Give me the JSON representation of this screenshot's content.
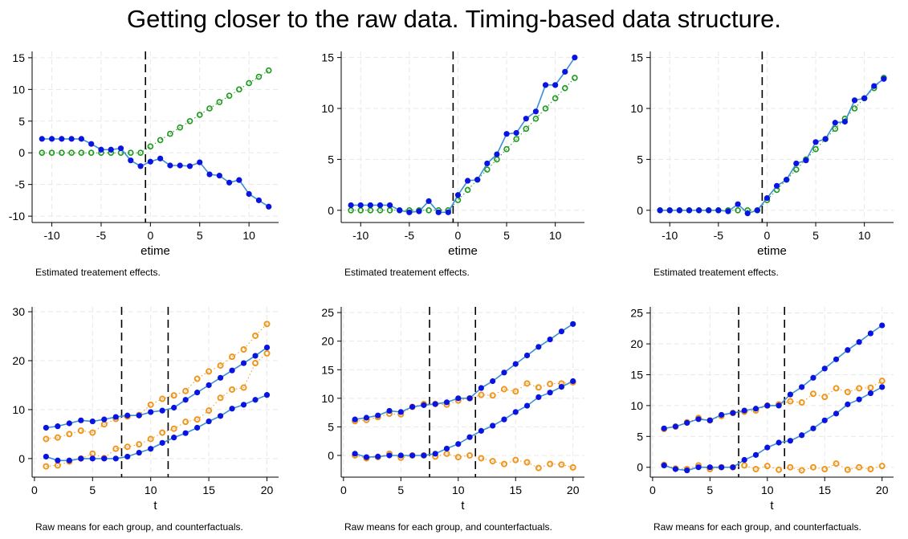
{
  "page": {
    "title": "Getting closer to the raw data.  Timing-based data structure."
  },
  "colors": {
    "estimate": "#0a14e0",
    "estimate_line": "#3a8fd8",
    "truth": "#1c9a1c",
    "counterfactual": "#f0961e",
    "counterfactual_line": "#f0961e",
    "raw_line": "#3a8fd8",
    "vline": "#000000",
    "grid": "#e8e8e8"
  },
  "chart_data": [
    {
      "type": "scatter",
      "row": 0,
      "col": 0,
      "xlabel": "etime",
      "caption": "Estimated treatement effects.",
      "xlim": [
        -12,
        13
      ],
      "ylim": [
        -11,
        16
      ],
      "xticks": [
        -10,
        -5,
        0,
        5,
        10
      ],
      "yticks": [
        -10,
        -5,
        0,
        5,
        10,
        15
      ],
      "vlines": [
        -0.5
      ],
      "series": [
        {
          "role": "estimate",
          "x": [
            -11,
            -10,
            -9,
            -8,
            -7,
            -6,
            -5,
            -4,
            -3,
            -2,
            -1,
            0,
            1,
            2,
            3,
            4,
            5,
            6,
            7,
            8,
            9,
            10,
            11,
            12
          ],
          "y": [
            2.2,
            2.2,
            2.2,
            2.2,
            2.2,
            1.4,
            0.5,
            0.5,
            0.7,
            -1.2,
            -2.1,
            -1.4,
            -0.9,
            -2.0,
            -2.0,
            -2.1,
            -1.5,
            -3.4,
            -3.6,
            -4.7,
            -4.3,
            -6.5,
            -7.5,
            -8.5
          ]
        },
        {
          "role": "truth",
          "x": [
            -11,
            -10,
            -9,
            -8,
            -7,
            -6,
            -5,
            -4,
            -3,
            -2,
            -1,
            0,
            1,
            2,
            3,
            4,
            5,
            6,
            7,
            8,
            9,
            10,
            11,
            12
          ],
          "y": [
            0,
            0,
            0,
            0,
            0,
            0,
            0,
            0,
            0,
            0,
            0,
            1,
            2,
            3,
            4,
            5,
            6,
            7,
            8,
            9,
            10,
            11,
            12,
            13
          ]
        }
      ]
    },
    {
      "type": "scatter",
      "row": 0,
      "col": 1,
      "xlabel": "etime",
      "caption": "Estimated treatement effects.",
      "xlim": [
        -12,
        13
      ],
      "ylim": [
        -1.2,
        15.6
      ],
      "xticks": [
        -10,
        -5,
        0,
        5,
        10
      ],
      "yticks": [
        0,
        5,
        10,
        15
      ],
      "vlines": [
        -0.5
      ],
      "series": [
        {
          "role": "estimate",
          "x": [
            -11,
            -10,
            -9,
            -8,
            -7,
            -6,
            -5,
            -4,
            -3,
            -2,
            -1,
            0,
            1,
            2,
            3,
            4,
            5,
            6,
            7,
            8,
            9,
            10,
            11,
            12
          ],
          "y": [
            0.5,
            0.5,
            0.5,
            0.5,
            0.5,
            0.0,
            -0.2,
            -0.1,
            0.9,
            -0.2,
            -0.2,
            1.5,
            2.9,
            3.0,
            4.6,
            5.5,
            7.5,
            7.6,
            9.0,
            9.7,
            12.3,
            12.3,
            13.6,
            15.0
          ]
        },
        {
          "role": "truth",
          "x": [
            -11,
            -10,
            -9,
            -8,
            -7,
            -6,
            -5,
            -4,
            -3,
            -2,
            -1,
            0,
            1,
            2,
            3,
            4,
            5,
            6,
            7,
            8,
            9,
            10,
            11,
            12
          ],
          "y": [
            0,
            0,
            0,
            0,
            0,
            0,
            0,
            0,
            0,
            0,
            0,
            1,
            2,
            3,
            4,
            5,
            6,
            7,
            8,
            9,
            10,
            11,
            12,
            13
          ]
        }
      ]
    },
    {
      "type": "scatter",
      "row": 0,
      "col": 2,
      "xlabel": "etime",
      "caption": "Estimated treatement effects.",
      "xlim": [
        -12,
        13
      ],
      "ylim": [
        -1.2,
        15.6
      ],
      "xticks": [
        -10,
        -5,
        0,
        5,
        10
      ],
      "yticks": [
        0,
        5,
        10,
        15
      ],
      "vlines": [
        -0.5
      ],
      "series": [
        {
          "role": "estimate",
          "x": [
            -11,
            -10,
            -9,
            -8,
            -7,
            -6,
            -5,
            -4,
            -3,
            -2,
            -1,
            0,
            1,
            2,
            3,
            4,
            5,
            6,
            7,
            8,
            9,
            10,
            11,
            12
          ],
          "y": [
            0,
            0,
            0,
            0,
            0,
            0,
            0,
            -0.1,
            0.6,
            -0.3,
            0,
            1.2,
            2.4,
            3.0,
            4.6,
            4.9,
            6.7,
            7.0,
            8.6,
            8.7,
            10.8,
            11.0,
            12.2,
            12.9
          ]
        },
        {
          "role": "truth",
          "x": [
            -11,
            -10,
            -9,
            -8,
            -7,
            -6,
            -5,
            -4,
            -3,
            -2,
            -1,
            0,
            1,
            2,
            3,
            4,
            5,
            6,
            7,
            8,
            9,
            10,
            11,
            12
          ],
          "y": [
            0,
            0,
            0,
            0,
            0,
            0,
            0,
            0,
            0,
            0,
            0,
            1,
            2,
            3,
            4,
            5,
            6,
            7,
            8,
            9,
            10,
            11,
            12,
            13
          ]
        }
      ]
    },
    {
      "type": "scatter",
      "row": 1,
      "col": 0,
      "xlabel": "t",
      "caption": "Raw means for each group, and counterfactuals.",
      "xlim": [
        -0.2,
        21
      ],
      "ylim": [
        -3.8,
        31
      ],
      "xticks": [
        0,
        5,
        10,
        15,
        20
      ],
      "yticks": [
        0,
        10,
        20,
        30
      ],
      "vlines": [
        7.5,
        11.5
      ],
      "series": [
        {
          "role": "raw",
          "x": [
            1,
            2,
            3,
            4,
            5,
            6,
            7,
            8,
            9,
            10,
            11,
            12,
            13,
            14,
            15,
            16,
            17,
            18,
            19,
            20
          ],
          "y": [
            6.3,
            6.6,
            7.2,
            7.8,
            7.6,
            8.0,
            8.5,
            8.8,
            8.8,
            9.5,
            9.8,
            10.4,
            12.0,
            13.5,
            15.0,
            16.5,
            18.0,
            19.5,
            21.0,
            22.7
          ]
        },
        {
          "role": "raw",
          "x": [
            1,
            2,
            3,
            4,
            5,
            6,
            7,
            8,
            9,
            10,
            11,
            12,
            13,
            14,
            15,
            16,
            17,
            18,
            19,
            20
          ],
          "y": [
            0.4,
            -0.4,
            -0.4,
            0,
            0,
            0,
            0,
            0.4,
            1.2,
            2.0,
            3.2,
            4.3,
            5.2,
            6.3,
            7.6,
            8.7,
            10.2,
            11.0,
            12.0,
            13.0
          ]
        },
        {
          "role": "counterfactual",
          "x": [
            1,
            2,
            3,
            4,
            5,
            6,
            7,
            8,
            9,
            10,
            11,
            12,
            13,
            14,
            15,
            16,
            17,
            18,
            19,
            20
          ],
          "y": [
            4.0,
            4.3,
            5.0,
            5.7,
            5.3,
            7.0,
            8.1,
            8.6,
            8.9,
            11.0,
            12.2,
            12.9,
            13.8,
            16.3,
            17.8,
            19.0,
            20.8,
            22.3,
            25.1,
            27.5
          ]
        },
        {
          "role": "counterfactual",
          "x": [
            1,
            2,
            3,
            4,
            5,
            6,
            7,
            8,
            9,
            10,
            11,
            12,
            13,
            14,
            15,
            16,
            17,
            18,
            19,
            20
          ],
          "y": [
            -1.6,
            -1.4,
            -0.6,
            0,
            1.0,
            0.1,
            2.0,
            2.4,
            2.9,
            4.0,
            5.3,
            6.1,
            7.5,
            8.0,
            9.8,
            12.4,
            14.1,
            14.5,
            19.5,
            21.5
          ]
        }
      ]
    },
    {
      "type": "scatter",
      "row": 1,
      "col": 1,
      "xlabel": "t",
      "caption": "Raw means for each group, and counterfactuals.",
      "xlim": [
        -0.2,
        21
      ],
      "ylim": [
        -3.8,
        26
      ],
      "xticks": [
        0,
        5,
        10,
        15,
        20
      ],
      "yticks": [
        0,
        5,
        10,
        15,
        20,
        25
      ],
      "vlines": [
        7.5,
        11.5
      ],
      "series": [
        {
          "role": "raw",
          "x": [
            1,
            2,
            3,
            4,
            5,
            6,
            7,
            8,
            9,
            10,
            11,
            12,
            13,
            14,
            15,
            16,
            17,
            18,
            19,
            20
          ],
          "y": [
            6.3,
            6.6,
            7.0,
            7.8,
            7.6,
            8.5,
            8.8,
            9.0,
            9.3,
            10.0,
            10.0,
            11.8,
            13.0,
            14.5,
            16.0,
            17.5,
            19.0,
            20.3,
            21.7,
            23.0
          ]
        },
        {
          "role": "raw",
          "x": [
            1,
            2,
            3,
            4,
            5,
            6,
            7,
            8,
            9,
            10,
            11,
            12,
            13,
            14,
            15,
            16,
            17,
            18,
            19,
            20
          ],
          "y": [
            0.3,
            -0.3,
            -0.2,
            0,
            0,
            0,
            0,
            0.3,
            1.2,
            2.0,
            3.2,
            4.3,
            5.2,
            6.3,
            7.6,
            8.7,
            10.2,
            11.0,
            12.0,
            13.0
          ]
        },
        {
          "role": "counterfactual",
          "x": [
            1,
            2,
            3,
            4,
            5,
            6,
            7,
            8,
            9,
            10,
            11,
            12,
            13,
            14,
            15,
            16,
            17,
            18,
            19,
            20
          ],
          "y": [
            6.0,
            6.2,
            6.7,
            7.3,
            7.2,
            8.5,
            9.0,
            9.0,
            8.9,
            9.6,
            10.0,
            10.6,
            10.5,
            11.6,
            11.2,
            12.6,
            11.9,
            12.5,
            12.6,
            12.8
          ]
        },
        {
          "role": "counterfactual",
          "x": [
            1,
            2,
            3,
            4,
            5,
            6,
            7,
            8,
            9,
            10,
            11,
            12,
            13,
            14,
            15,
            16,
            17,
            18,
            19,
            20
          ],
          "y": [
            0,
            -0.5,
            -0.3,
            0.3,
            -0.4,
            0,
            0,
            -0.2,
            0.3,
            -0.3,
            0,
            -0.5,
            -1.0,
            -1.5,
            -0.8,
            -1.2,
            -2.2,
            -1.5,
            -1.6,
            -2.1
          ]
        }
      ]
    },
    {
      "type": "scatter",
      "row": 1,
      "col": 2,
      "xlabel": "t",
      "caption": "Raw means for each group, and counterfactuals.",
      "xlim": [
        -0.2,
        21
      ],
      "ylim": [
        -1.6,
        26
      ],
      "xticks": [
        0,
        5,
        10,
        15,
        20
      ],
      "yticks": [
        0,
        5,
        10,
        15,
        20,
        25
      ],
      "vlines": [
        7.5,
        11.5
      ],
      "series": [
        {
          "role": "raw",
          "x": [
            1,
            2,
            3,
            4,
            5,
            6,
            7,
            8,
            9,
            10,
            11,
            12,
            13,
            14,
            15,
            16,
            17,
            18,
            19,
            20
          ],
          "y": [
            6.3,
            6.6,
            7.2,
            7.8,
            7.6,
            8.5,
            8.8,
            9.2,
            9.5,
            10.0,
            10.0,
            11.8,
            13.0,
            14.5,
            16.0,
            17.5,
            19.0,
            20.3,
            21.7,
            23.0
          ]
        },
        {
          "role": "raw",
          "x": [
            1,
            2,
            3,
            4,
            5,
            6,
            7,
            8,
            9,
            10,
            11,
            12,
            13,
            14,
            15,
            16,
            17,
            18,
            19,
            20
          ],
          "y": [
            0.3,
            -0.3,
            -0.5,
            0,
            0,
            0,
            0,
            1.2,
            2.0,
            3.2,
            4.0,
            4.3,
            5.2,
            6.3,
            7.6,
            8.7,
            10.2,
            11.0,
            12.0,
            13.0
          ]
        },
        {
          "role": "counterfactual",
          "x": [
            1,
            2,
            3,
            4,
            5,
            6,
            7,
            8,
            9,
            10,
            11,
            12,
            13,
            14,
            15,
            16,
            17,
            18,
            19,
            20
          ],
          "y": [
            6.2,
            6.6,
            7.3,
            8.0,
            7.6,
            8.3,
            8.8,
            9.0,
            9.2,
            10.0,
            10.2,
            10.7,
            10.5,
            11.9,
            11.4,
            12.8,
            12.2,
            12.8,
            12.9,
            14.0
          ]
        },
        {
          "role": "counterfactual",
          "x": [
            1,
            2,
            3,
            4,
            5,
            6,
            7,
            8,
            9,
            10,
            11,
            12,
            13,
            14,
            15,
            16,
            17,
            18,
            19,
            20
          ],
          "y": [
            0.4,
            -0.2,
            -0.3,
            0.3,
            -0.3,
            0,
            0,
            0.3,
            -0.3,
            0.2,
            -0.4,
            0,
            -0.5,
            0,
            -0.3,
            0.6,
            -0.4,
            0,
            -0.3,
            0.2
          ]
        }
      ]
    }
  ]
}
